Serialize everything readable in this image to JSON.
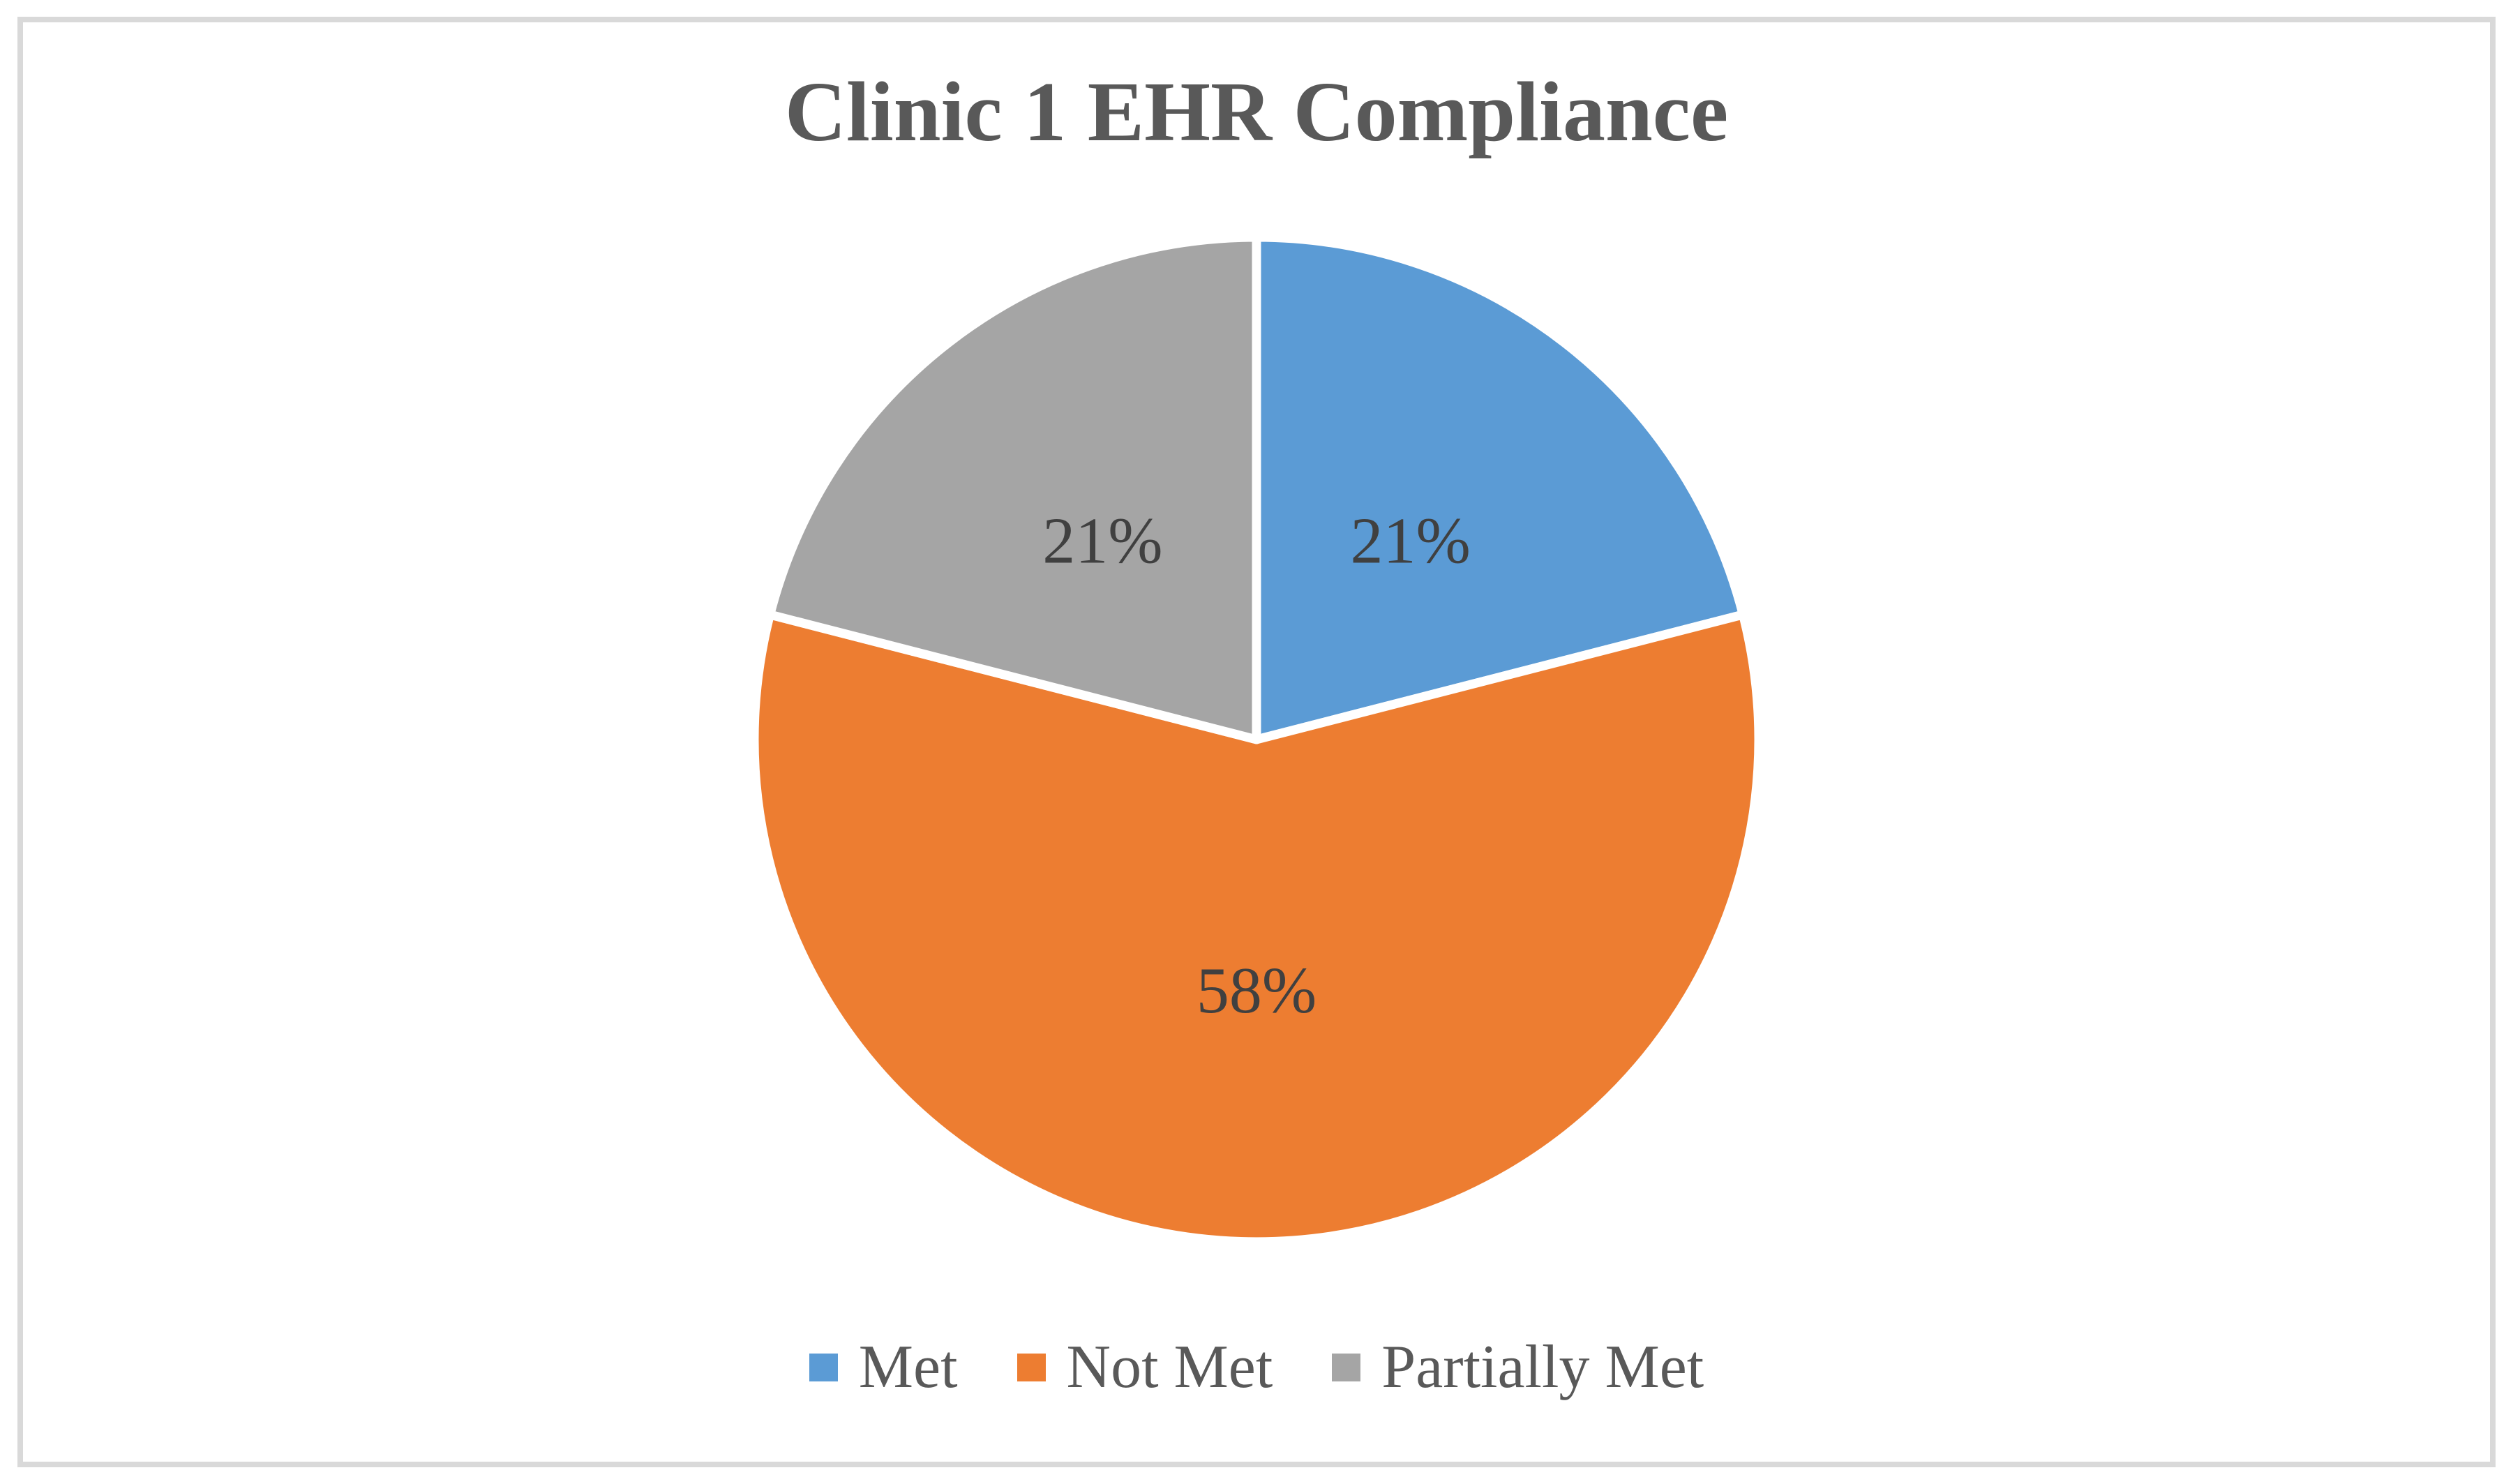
{
  "page": {
    "background": "#FFFFFF",
    "frame_border_color": "#D9D9D9"
  },
  "chart_data": {
    "type": "pie",
    "title": "Clinic 1 EHR Compliance",
    "title_color": "#595959",
    "categories": [
      "Met",
      "Not Met",
      "Partially Met"
    ],
    "values": [
      21,
      58,
      21
    ],
    "unit": "percent",
    "colors": [
      "#5B9BD5",
      "#ED7D31",
      "#A5A5A5"
    ],
    "slice_labels": [
      "21%",
      "58%",
      "21%"
    ],
    "slice_label_color": "#404040",
    "slice_border_color": "#FFFFFF",
    "start_angle_deg": 0,
    "direction": "clockwise",
    "legend_position": "bottom",
    "legend_text_color": "#595959"
  },
  "legend": {
    "items": [
      {
        "label": "Met",
        "color": "#5B9BD5"
      },
      {
        "label": "Not Met",
        "color": "#ED7D31"
      },
      {
        "label": "Partially Met",
        "color": "#A5A5A5"
      }
    ]
  }
}
